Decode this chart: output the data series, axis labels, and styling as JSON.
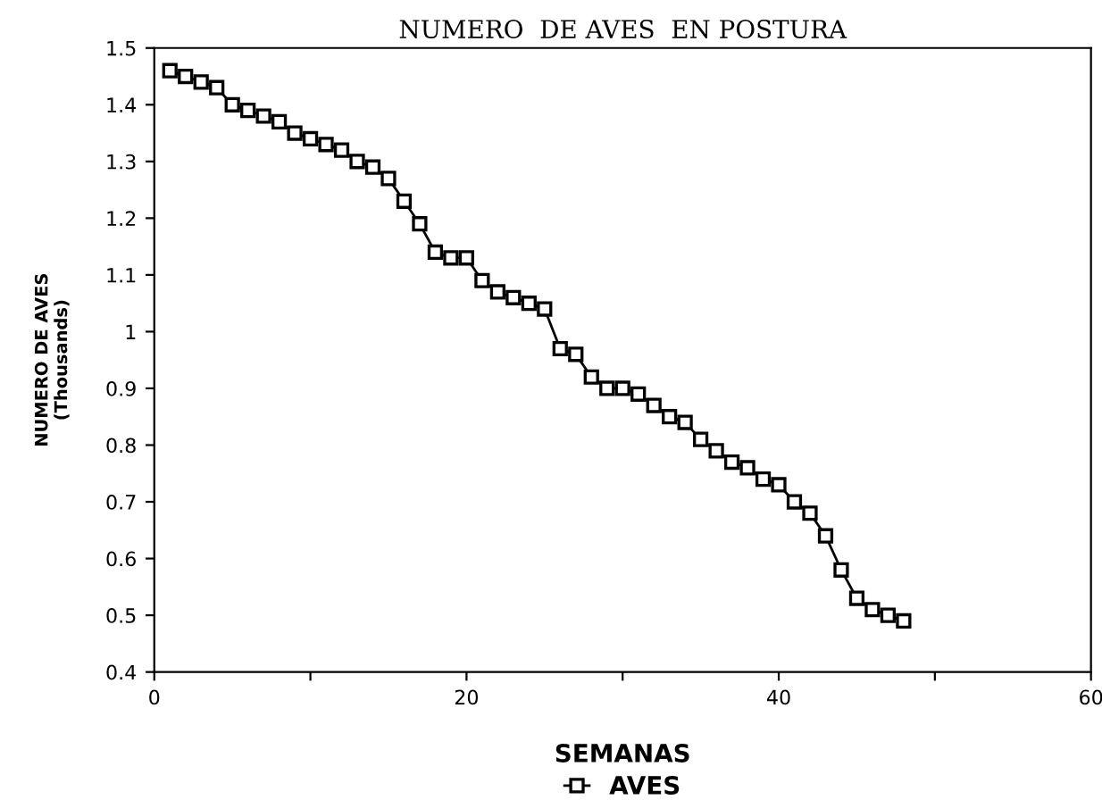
{
  "chart_data": {
    "type": "line",
    "title": "NUMERO  DE AVES  EN POSTURA",
    "xlabel": "SEMANAS",
    "ylabel": "NUMERO DE AVES\n(Thousands)",
    "x": [
      1,
      2,
      3,
      4,
      5,
      6,
      7,
      8,
      9,
      10,
      11,
      12,
      13,
      14,
      15,
      16,
      17,
      18,
      19,
      20,
      21,
      22,
      23,
      24,
      25,
      26,
      27,
      28,
      29,
      30,
      31,
      32,
      33,
      34,
      35,
      36,
      37,
      38,
      39,
      40,
      41,
      42,
      43,
      44,
      45,
      46,
      47,
      48
    ],
    "series": [
      {
        "name": "AVES",
        "color": "#000000",
        "values": [
          1.46,
          1.45,
          1.44,
          1.43,
          1.4,
          1.39,
          1.38,
          1.37,
          1.35,
          1.34,
          1.33,
          1.32,
          1.3,
          1.29,
          1.27,
          1.23,
          1.19,
          1.14,
          1.13,
          1.13,
          1.09,
          1.07,
          1.06,
          1.05,
          1.04,
          0.97,
          0.96,
          0.92,
          0.9,
          0.9,
          0.89,
          0.87,
          0.85,
          0.84,
          0.81,
          0.79,
          0.77,
          0.76,
          0.74,
          0.73,
          0.7,
          0.68,
          0.64,
          0.58,
          0.53,
          0.51,
          0.5,
          0.49
        ]
      }
    ],
    "xlim": [
      0,
      60
    ],
    "xticks": [
      0,
      {
        "value": 10,
        "label": null
      },
      20,
      {
        "value": 30,
        "label": null
      },
      40,
      {
        "value": 50,
        "label": null
      },
      60
    ],
    "ylim": [
      0.4,
      1.5
    ],
    "yticks": [
      0.4,
      0.5,
      0.6,
      0.7,
      0.8,
      0.9,
      1,
      1.1,
      1.2,
      1.3,
      1.4,
      1.5
    ],
    "marker": "square",
    "line_style": "solid",
    "grid": false,
    "legend": "bottom"
  }
}
